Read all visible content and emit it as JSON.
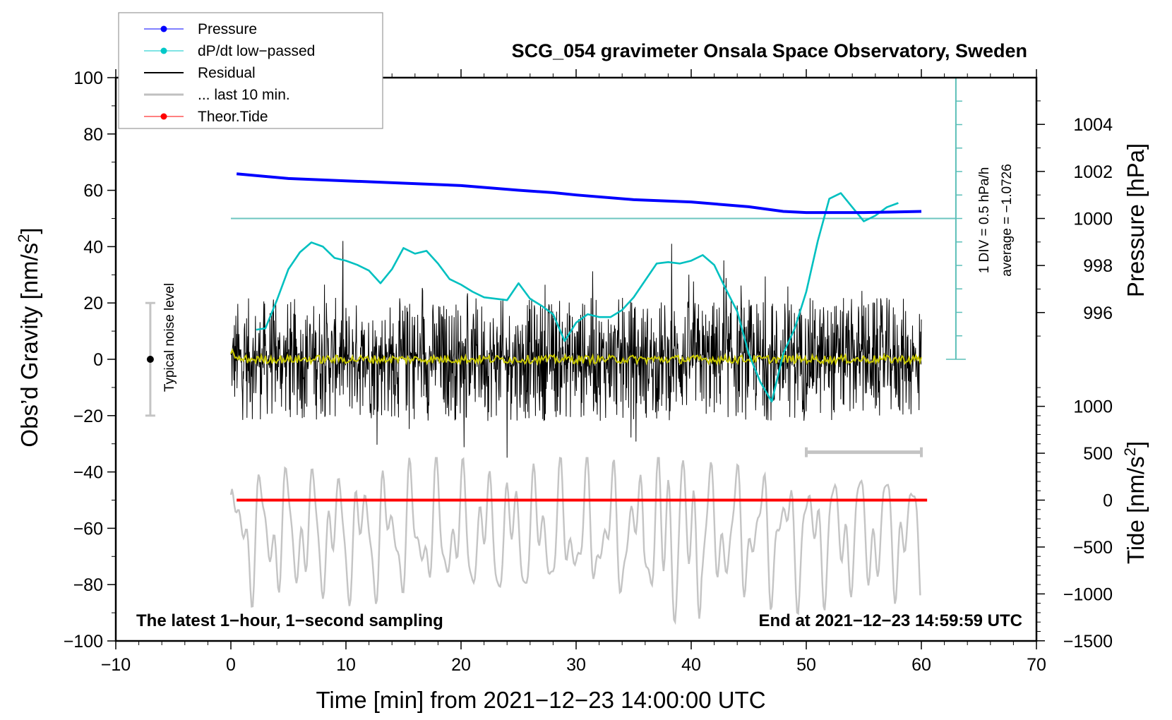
{
  "chart_data": {
    "type": "line",
    "title": "SCG_054 gravimeter Onsala Space Observatory, Sweden",
    "xlabel": "Time [min] from 2021−12−23 14:00:00 UTC",
    "ylabel_left": "Obs’d Gravity [nm/s",
    "ylabel_left_sup": "2",
    "ylabel_left_end": "]",
    "ylabel_right_top": "Pressure [hPa]",
    "ylabel_right_bottom": "Tide [nm/s",
    "ylabel_right_bottom_sup": "2",
    "ylabel_right_bottom_end": "]",
    "xlim": [
      -10,
      70
    ],
    "ylim_left": [
      -100,
      100
    ],
    "x_ticks": [
      -10,
      0,
      10,
      20,
      30,
      40,
      50,
      60,
      70
    ],
    "x_tick_labels": [
      "−10",
      "0",
      "10",
      "20",
      "30",
      "40",
      "50",
      "60",
      "70"
    ],
    "y_left_ticks": [
      100,
      80,
      60,
      40,
      20,
      0,
      -20,
      -40,
      -60,
      -80,
      -100
    ],
    "y_left_tick_labels": [
      "100",
      "80",
      "60",
      "40",
      "20",
      "0",
      "−20",
      "−40",
      "−60",
      "−80",
      "−100"
    ],
    "pressure_axis": {
      "ticks": [
        1004,
        1002,
        1000,
        998,
        996
      ],
      "tick_labels": [
        "1004",
        "1002",
        "1000",
        "998",
        "996"
      ],
      "ref_value": 1000,
      "ref_gravity_units": 50,
      "gravity_units_per_hPa": 8.35
    },
    "tide_axis": {
      "ticks": [
        1000,
        500,
        0,
        -500,
        -1000,
        -1500
      ],
      "tick_labels": [
        "1000",
        "500",
        "0",
        "−500",
        "−1000",
        "−1500"
      ],
      "ref_value": 0,
      "ref_gravity_units": -50,
      "gravity_units_per_nm": 0.0333
    },
    "legend": {
      "placement": "top-left",
      "entries": [
        {
          "label": "Pressure",
          "color": "#0000ff",
          "marker": true,
          "width": 1
        },
        {
          "label": "dP/dt low−passed",
          "color": "#00c8c8",
          "marker": true,
          "width": 1
        },
        {
          "label": "Residual",
          "color": "#000000",
          "marker": false,
          "width": 2
        },
        {
          "label": "... last 10 min.",
          "color": "#c0c0c0",
          "marker": false,
          "width": 3
        },
        {
          "label": "Theor.Tide",
          "color": "#ff0000",
          "marker": true,
          "width": 1
        }
      ]
    },
    "series": [
      {
        "name": "Pressure",
        "axis": "pressure",
        "color": "#0000ff",
        "x": [
          0.5,
          5,
          10,
          15,
          20,
          25,
          28,
          30,
          35,
          40,
          45,
          48,
          50,
          55,
          60
        ],
        "values": [
          1001.9,
          1001.7,
          1001.6,
          1001.5,
          1001.4,
          1001.2,
          1001.1,
          1001.0,
          1000.8,
          1000.7,
          1000.5,
          1000.3,
          1000.25,
          1000.25,
          1000.3
        ]
      },
      {
        "name": "dP/dt low-passed",
        "axis": "left",
        "color": "#00c0c0",
        "x": [
          2.2,
          3,
          4,
          5,
          6,
          7,
          8,
          9,
          10,
          11,
          12,
          13,
          14,
          15,
          16,
          17,
          18,
          19,
          20,
          21,
          22,
          23,
          24,
          25,
          26,
          27,
          28,
          29,
          30,
          31,
          32,
          33,
          34,
          35,
          36,
          37,
          38,
          39,
          40,
          41,
          42,
          43,
          44,
          45,
          46,
          47,
          48,
          49,
          50,
          51,
          52,
          53,
          54,
          55,
          56,
          57,
          58
        ],
        "values": [
          10.5,
          11,
          21,
          32,
          38,
          41.5,
          40,
          36,
          35,
          33.5,
          31.5,
          27,
          32,
          39.5,
          37.5,
          38.5,
          34,
          28.5,
          26.5,
          24,
          22,
          21.5,
          21,
          27,
          21.5,
          19,
          16,
          6.5,
          13,
          16,
          15,
          15,
          17.5,
          22,
          28,
          34,
          34.5,
          34,
          35,
          37,
          33.5,
          25,
          17,
          2,
          -8,
          -15,
          2,
          11,
          24,
          42,
          57,
          59,
          54,
          49,
          51,
          54,
          55.5
        ]
      },
      {
        "name": "Residual",
        "axis": "left",
        "color": "#000000",
        "x_start": 0,
        "x_end": 60,
        "envelope": [
          -35,
          42
        ],
        "note": "1-second residual noise around 0"
      },
      {
        "name": "Residual smoothed",
        "axis": "left",
        "color": "#c8c800",
        "x_start": 0,
        "x_end": 60,
        "approx_value": 0
      },
      {
        "name": "... last 10 min.",
        "axis": "tide",
        "color": "#c0c0c0",
        "x_start": 0,
        "x_end": 60,
        "envelope": [
          -1500,
          500
        ],
        "note": "oscillating trace between about -90 and -35 gravity units"
      },
      {
        "name": "Theor.Tide",
        "axis": "tide",
        "color": "#ff0000",
        "x": [
          0.5,
          60.5
        ],
        "values": [
          0,
          0
        ]
      }
    ],
    "annotations": {
      "dpdt_scale": "1 DIV = 0.5 hPa/h",
      "dpdt_average": "average = −1.0726",
      "noise_label": "Typical noise level",
      "noise_range": [
        -20,
        20
      ],
      "noise_x": -7,
      "last10_bracket": [
        50,
        60
      ],
      "last10_y": -33,
      "bottom_left": "The latest 1−hour, 1−second sampling",
      "bottom_right": "End at 2021−12−23 14:59:59 UTC"
    },
    "grid": false
  }
}
